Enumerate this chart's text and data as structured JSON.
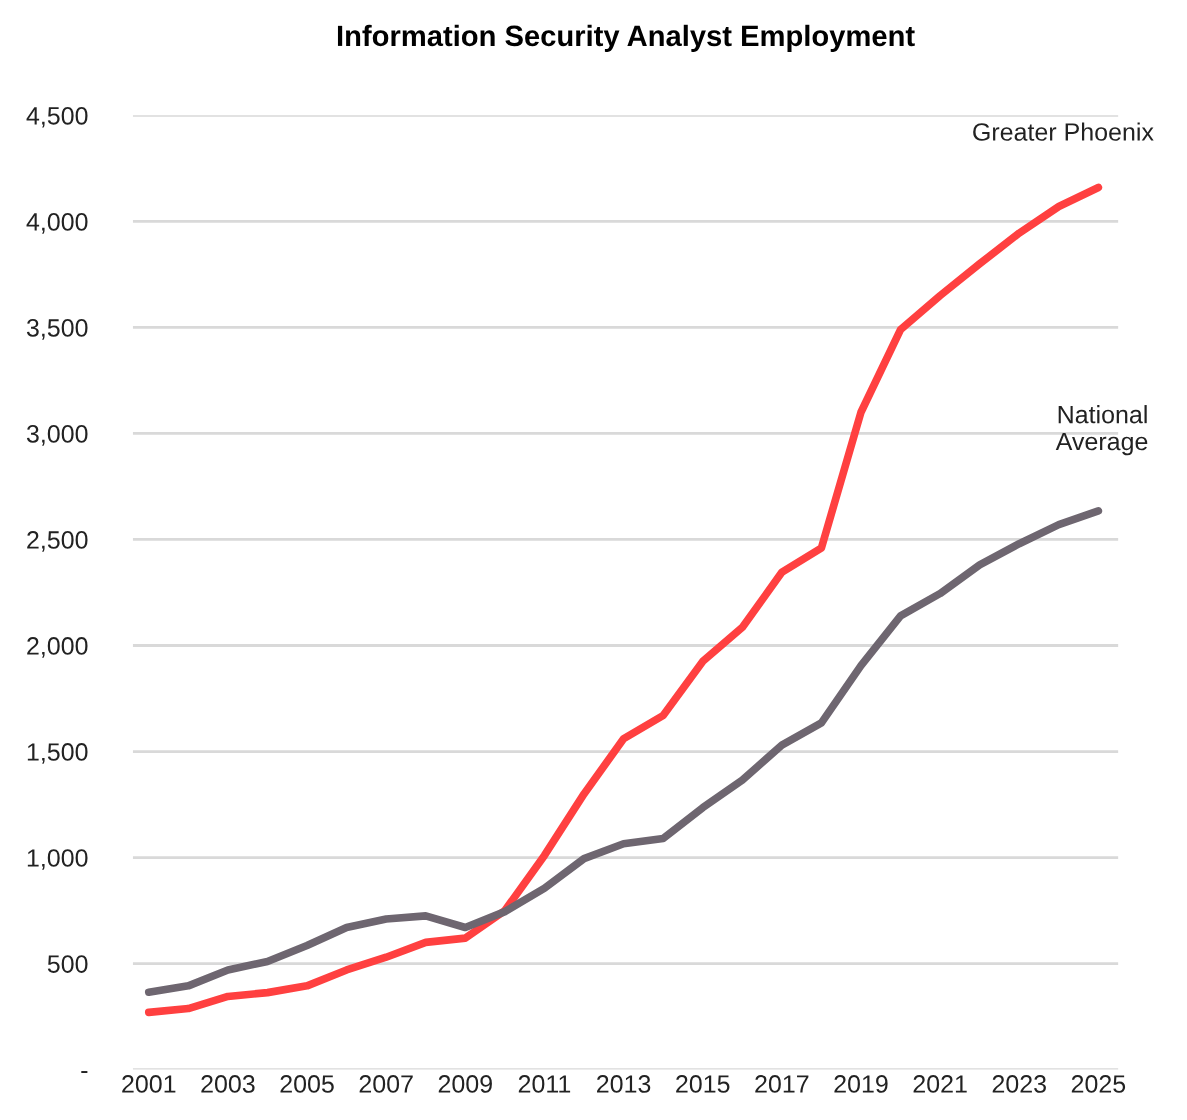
{
  "chart_data": {
    "type": "line",
    "title": "Information Security Analyst Employment",
    "x": [
      2001,
      2002,
      2003,
      2004,
      2005,
      2006,
      2007,
      2008,
      2009,
      2010,
      2011,
      2012,
      2013,
      2014,
      2015,
      2016,
      2017,
      2018,
      2019,
      2020,
      2021,
      2022,
      2023,
      2024,
      2025
    ],
    "series": [
      {
        "name": "Greater Phoenix",
        "color": "#ff4040",
        "values": [
          270,
          288,
          345,
          363,
          395,
          470,
          530,
          600,
          620,
          750,
          1010,
          1300,
          1560,
          1670,
          1925,
          2085,
          2345,
          2460,
          3100,
          3490,
          3650,
          3800,
          3945,
          4070,
          4160
        ]
      },
      {
        "name": "National\nAverage",
        "color": "#6e6670",
        "values": [
          365,
          395,
          470,
          510,
          585,
          670,
          710,
          725,
          670,
          745,
          855,
          995,
          1065,
          1090,
          1235,
          1365,
          1530,
          1635,
          1905,
          2140,
          2245,
          2380,
          2480,
          2570,
          2635
        ]
      }
    ],
    "xlim": [
      2000.6,
      2025.5
    ],
    "xticks": [
      2001,
      2003,
      2005,
      2007,
      2009,
      2011,
      2013,
      2015,
      2017,
      2019,
      2021,
      2023,
      2025
    ],
    "ylim": [
      0,
      4500
    ],
    "yticks": [
      {
        "value": 0,
        "label": "-"
      },
      {
        "value": 500,
        "label": "500"
      },
      {
        "value": 1000,
        "label": "1,000"
      },
      {
        "value": 1500,
        "label": "1,500"
      },
      {
        "value": 2000,
        "label": "2,000"
      },
      {
        "value": 2500,
        "label": "2,500"
      },
      {
        "value": 3000,
        "label": "3,000"
      },
      {
        "value": 3500,
        "label": "3,500"
      },
      {
        "value": 4000,
        "label": "4,000"
      },
      {
        "value": 4500,
        "label": "4,500"
      }
    ],
    "grid": "y",
    "legend": false,
    "marker": "none",
    "line_style": "solid"
  }
}
